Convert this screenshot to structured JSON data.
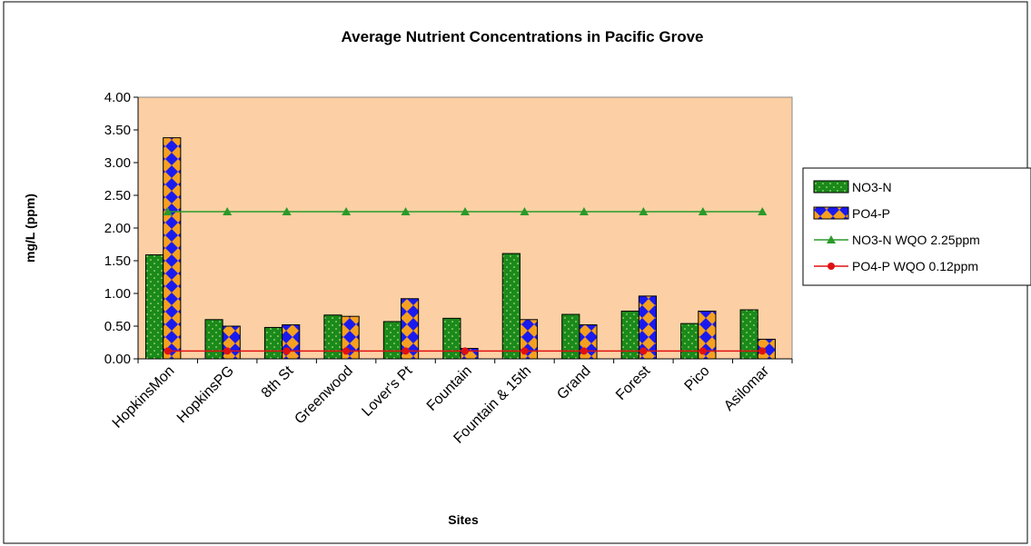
{
  "chart_data": {
    "type": "bar",
    "title": "Average Nutrient Concentrations in Pacific Grove",
    "xlabel": "Sites",
    "ylabel": "mg/L (ppm)",
    "ylim": [
      0,
      4
    ],
    "yticks": [
      "0.00",
      "0.50",
      "1.00",
      "1.50",
      "2.00",
      "2.50",
      "3.00",
      "3.50",
      "4.00"
    ],
    "categories": [
      "HopkinsMon",
      "HopkinsPG",
      "8th St",
      "Greenwood",
      "Lover's Pt",
      "Fountain",
      "Fountain & 15th",
      "Grand",
      "Forest",
      "Pico",
      "Asilomar"
    ],
    "series": [
      {
        "name": "NO3-N",
        "kind": "bar",
        "values": [
          1.59,
          0.6,
          0.48,
          0.67,
          0.57,
          0.62,
          1.61,
          0.68,
          0.73,
          0.54,
          0.75
        ],
        "color": "#1a8a1a",
        "pattern": "dots"
      },
      {
        "name": "PO4-P",
        "kind": "bar",
        "values": [
          3.38,
          0.5,
          0.52,
          0.65,
          0.92,
          0.16,
          0.6,
          0.52,
          0.96,
          0.73,
          0.3
        ],
        "color": "#f5a020",
        "pattern": "diamonds"
      },
      {
        "name": "NO3-N WQO 2.25ppm",
        "kind": "line",
        "values": [
          2.25,
          2.25,
          2.25,
          2.25,
          2.25,
          2.25,
          2.25,
          2.25,
          2.25,
          2.25,
          2.25
        ],
        "color": "#2a9a2a",
        "marker": "triangle"
      },
      {
        "name": "PO4-P WQO 0.12ppm",
        "kind": "line",
        "values": [
          0.12,
          0.12,
          0.12,
          0.12,
          0.12,
          0.12,
          0.12,
          0.12,
          0.12,
          0.12,
          0.12
        ],
        "color": "#e01010",
        "marker": "circle"
      }
    ],
    "grid": false,
    "legend_position": "right",
    "plot_background": "#fcd0a4"
  }
}
